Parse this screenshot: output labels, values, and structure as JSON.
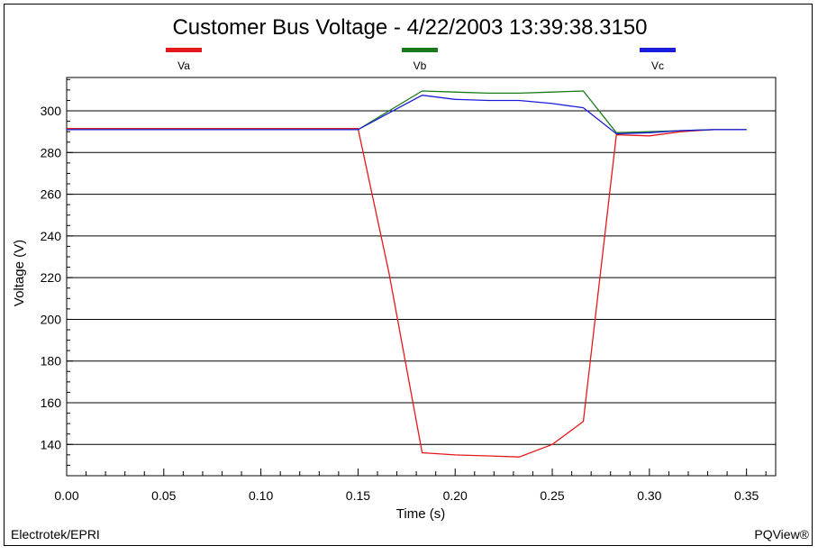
{
  "chart_data": {
    "type": "line",
    "title": "Customer Bus Voltage - 4/22/2003 13:39:38.3150",
    "xlabel": "Time (s)",
    "ylabel": "Voltage (V)",
    "xlim": [
      0.0,
      0.365
    ],
    "ylim": [
      125,
      316
    ],
    "x_ticks": [
      "0.00",
      "0.05",
      "0.10",
      "0.15",
      "0.20",
      "0.25",
      "0.30",
      "0.35"
    ],
    "x_tick_values": [
      0.0,
      0.05,
      0.1,
      0.15,
      0.2,
      0.25,
      0.3,
      0.35
    ],
    "y_ticks": [
      "140",
      "160",
      "180",
      "200",
      "220",
      "240",
      "260",
      "280",
      "300"
    ],
    "y_tick_values": [
      140,
      160,
      180,
      200,
      220,
      240,
      260,
      280,
      300
    ],
    "grid": "horizontal",
    "legend_position": "top",
    "series": [
      {
        "name": "Va",
        "color": "#e31a1c",
        "x": [
          0.0,
          0.15,
          0.166,
          0.183,
          0.2,
          0.217,
          0.233,
          0.25,
          0.266,
          0.283,
          0.3,
          0.316,
          0.333,
          0.35
        ],
        "y": [
          291.5,
          291.5,
          222,
          136,
          135,
          134.5,
          134,
          140,
          151,
          288.5,
          288,
          290,
          291,
          291
        ]
      },
      {
        "name": "Vb",
        "color": "#1a7a1a",
        "x": [
          0.0,
          0.15,
          0.166,
          0.183,
          0.2,
          0.217,
          0.233,
          0.25,
          0.266,
          0.283,
          0.3,
          0.316,
          0.333,
          0.35
        ],
        "y": [
          291,
          291,
          300,
          309.5,
          309,
          308.5,
          308.5,
          309,
          309.5,
          289.5,
          290,
          290.5,
          291,
          291
        ]
      },
      {
        "name": "Vc",
        "color": "#1c1cdc",
        "x": [
          0.0,
          0.15,
          0.166,
          0.183,
          0.2,
          0.217,
          0.233,
          0.25,
          0.266,
          0.283,
          0.3,
          0.316,
          0.333,
          0.35
        ],
        "y": [
          291,
          291,
          299,
          307.5,
          305.5,
          305,
          305,
          303.5,
          301.5,
          289,
          289.5,
          290.5,
          291,
          291
        ]
      }
    ]
  },
  "footer": {
    "left": "Electrotek/EPRI",
    "right": "PQView®"
  }
}
